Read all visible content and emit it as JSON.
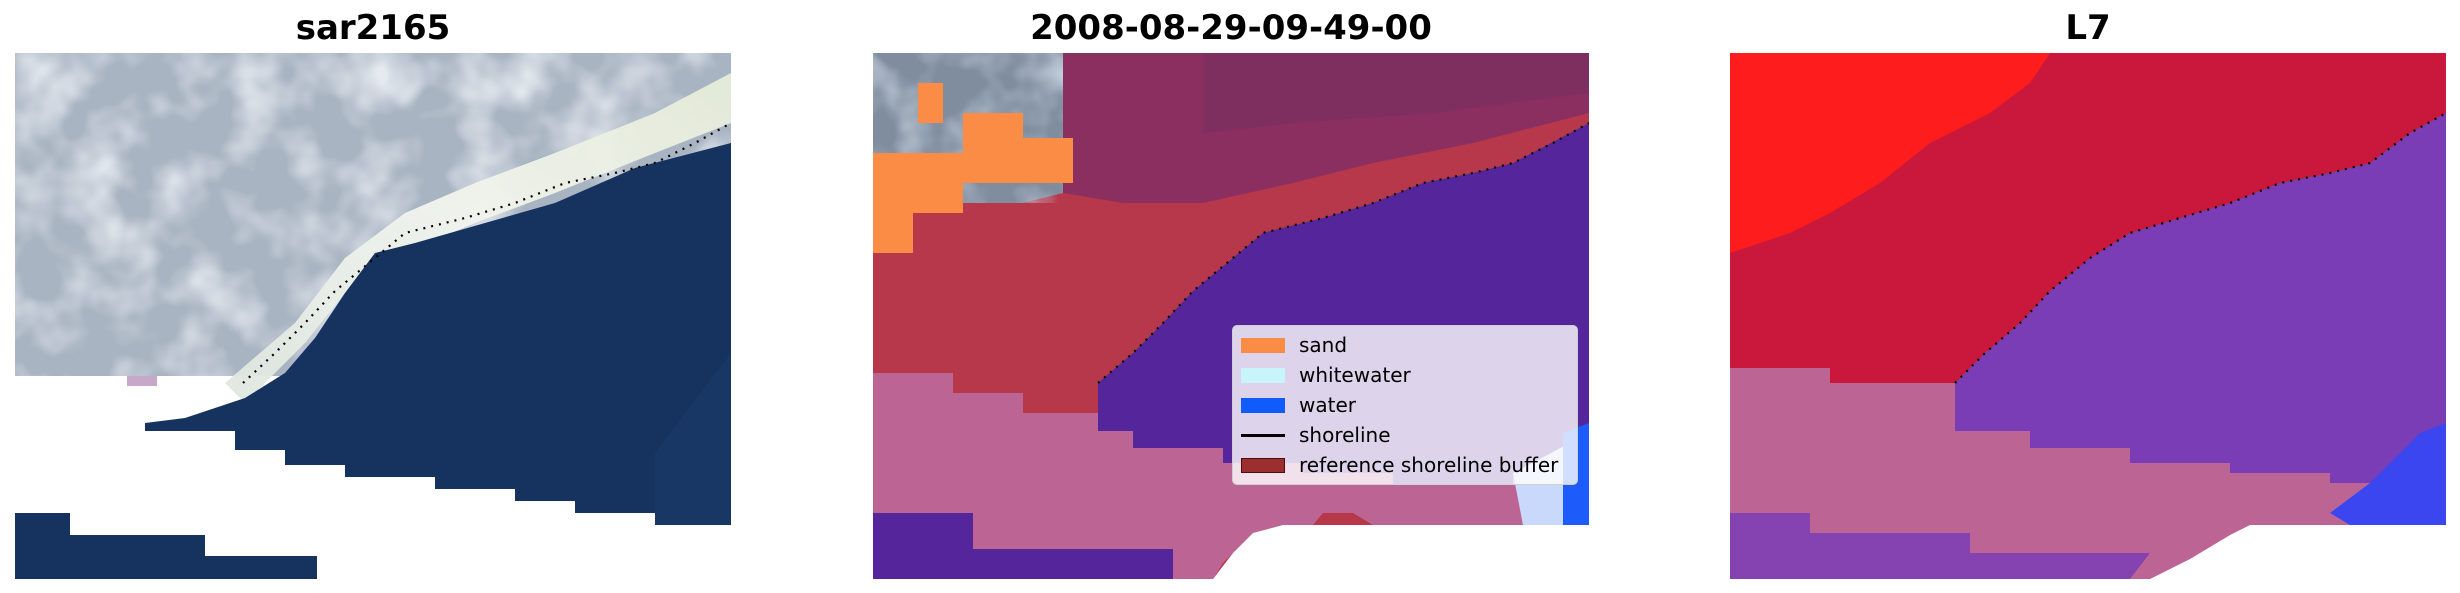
{
  "panels": [
    {
      "title": "sar2165"
    },
    {
      "title": "2008-08-29-09-49-00"
    },
    {
      "title": "L7"
    }
  ],
  "legend": {
    "items": [
      {
        "label": "sand",
        "color": "#fb8c45"
      },
      {
        "label": "whitewater",
        "color": "#c8f5fb"
      },
      {
        "label": "water",
        "color": "#0f5bfb"
      },
      {
        "label": "shoreline",
        "color": "#000000"
      },
      {
        "label": "reference shoreline buffer",
        "color": "#9b2e2e"
      }
    ]
  },
  "colors": {
    "water_rgb": "#15325f",
    "sand_rgb": "#c7ced6",
    "breaking_rgb": "#e8eee9",
    "class_sand": "#fb8c45",
    "class_land": "#b7384a",
    "class_water": "#55269b",
    "buffer_lower": "#bc6594",
    "prob_land": "#ff1c1c",
    "prob_mid": "#c9183c",
    "prob_water": "#6b3ab0"
  }
}
